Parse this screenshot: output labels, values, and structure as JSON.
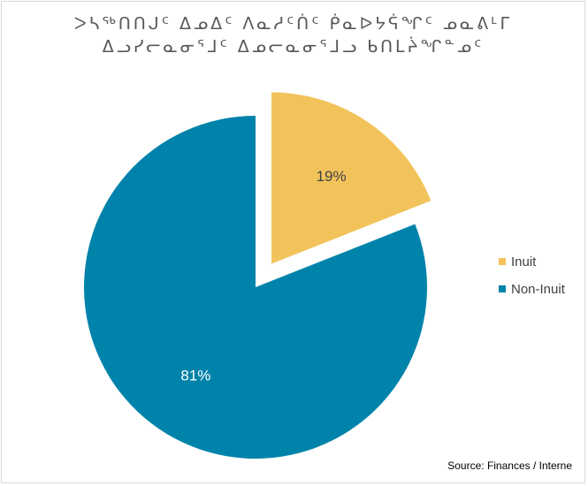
{
  "chart_data": {
    "type": "pie",
    "title_lines": [
      "ᐳᓴᖅᑎᑎᒍᑦ ᐃᓄᐃᑦ ᐱᓇᓱᑦᑏᑦ ᑮᓇᐅᔭᕌᖏᑦ ᓄᓇᕕᒻᒥ",
      "ᐃᓗᓯᓕᓇᓂᕐᒧᑦ ᐃᓄᓕᓇᓂᕐᒧᓗ ᑲᑎᒪᔩᖏᓐᓄᑦ"
    ],
    "slices": [
      {
        "name": "Inuit",
        "value": 19,
        "label": "19%",
        "color": "#f2c35b",
        "exploded": true
      },
      {
        "name": "Non-Inuit",
        "value": 81,
        "label": "81%",
        "color": "#0083aa",
        "exploded": false
      }
    ],
    "legend_position": "right",
    "label_color": "#ffffff",
    "label_color_on_light": "#404040"
  },
  "source": "Source: Finances / Interne"
}
